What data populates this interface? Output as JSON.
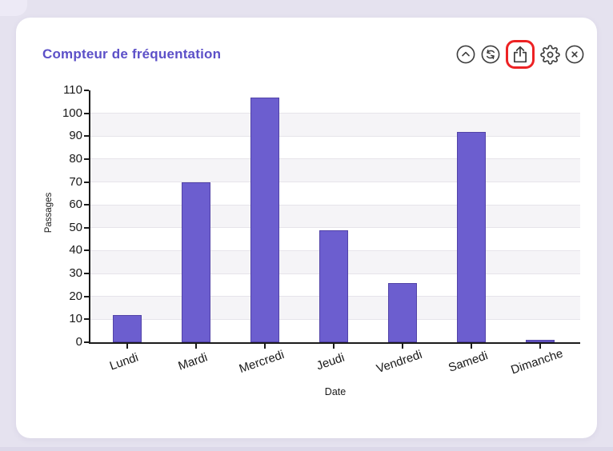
{
  "card": {
    "title": "Compteur de fréquentation",
    "title_color": "#5c50c8",
    "toolbar": {
      "collapse": {
        "icon": "chevron-up-circle-icon"
      },
      "refresh": {
        "icon": "refresh-circle-icon"
      },
      "export": {
        "icon": "upload-icon",
        "highlighted": true,
        "highlight_color": "#ed2224"
      },
      "settings": {
        "icon": "gear-icon"
      },
      "close": {
        "icon": "close-circle-icon"
      }
    }
  },
  "chart_data": {
    "type": "bar",
    "title": "Compteur de fréquentation",
    "categories": [
      "Lundi",
      "Mardi",
      "Mercredi",
      "Jeudi",
      "Vendredi",
      "Samedi",
      "Dimanche"
    ],
    "values": [
      12,
      70,
      107,
      49,
      26,
      92,
      1
    ],
    "xlabel": "Date",
    "ylabel": "Passages",
    "ylim": [
      0,
      110
    ],
    "ytick_step": 10,
    "bar_color": "#6c5ecf",
    "bar_border_color": "#5243a8",
    "grid": "horizontal-bands",
    "legend_position": "none"
  }
}
